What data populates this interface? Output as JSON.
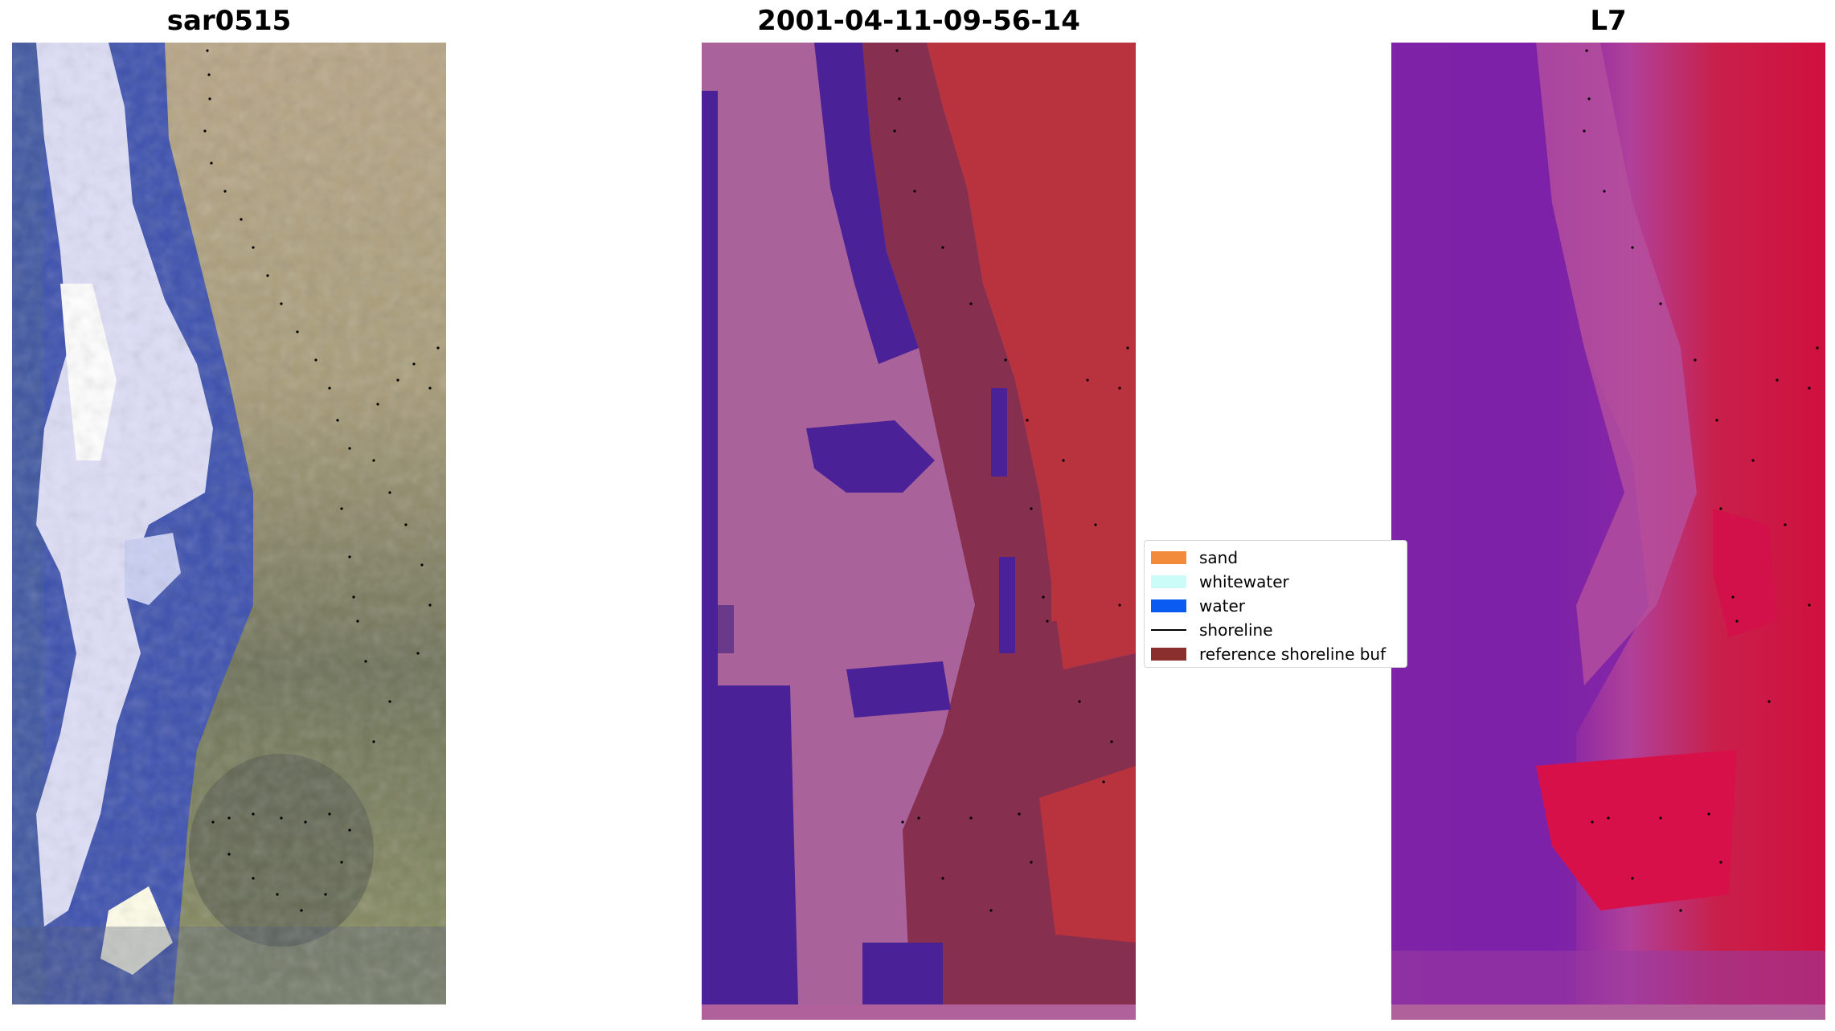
{
  "panels": [
    {
      "title": "sar0515"
    },
    {
      "title": "2001-04-11-09-56-14"
    },
    {
      "title": "L7"
    }
  ],
  "legend": {
    "items": [
      {
        "label": "sand",
        "color": "#f28c3c"
      },
      {
        "label": "whitewater",
        "color": "#ccfcf7"
      },
      {
        "label": "water",
        "color": "#0a5bf0"
      },
      {
        "label": "shoreline",
        "color": "#000000"
      },
      {
        "label": "reference shoreline buf",
        "color": "#8b2e2e"
      }
    ]
  },
  "colors": {
    "rgb_water": "#3a50b0",
    "rgb_whitewater": "#eeeeff",
    "rgb_land": "#9a9070",
    "class_water": "#4b2198",
    "class_bright": "#a9629a",
    "class_sand": "#b9333f",
    "class_buffer": "#862f4e",
    "index_water": "#7a22a8",
    "index_land": "#c8103c"
  }
}
